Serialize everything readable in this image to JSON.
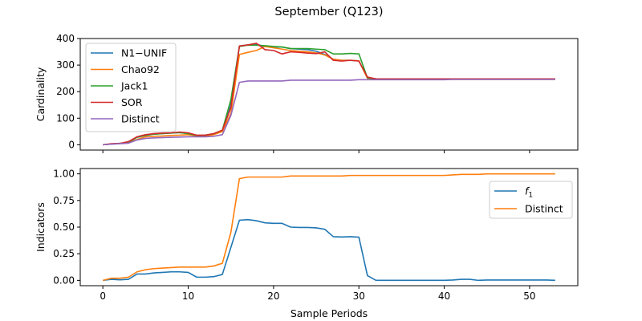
{
  "figure_title": "September (Q123)",
  "chart_data": [
    {
      "type": "line",
      "title": "",
      "xlabel": "",
      "ylabel": "Cardinality",
      "xlim": [
        -2.65,
        55.65
      ],
      "ylim": [
        -20,
        400
      ],
      "xticks": [
        0,
        10,
        20,
        30,
        40,
        50
      ],
      "yticks": [
        0,
        100,
        200,
        300,
        400
      ],
      "ytick_labels": [
        "0",
        "100",
        "200",
        "300",
        "400"
      ],
      "show_xtick_labels": false,
      "grid": false,
      "legend_position": "upper left",
      "series": [
        {
          "name": "N1−UNIF",
          "color": "#1f77b4",
          "x": [
            0,
            1,
            2,
            3,
            4,
            5,
            6,
            7,
            8,
            9,
            10,
            11,
            12,
            13,
            14,
            15,
            16,
            17,
            18,
            19,
            20,
            21,
            22,
            23,
            24,
            25,
            26,
            27,
            28,
            29,
            30,
            31,
            32,
            33,
            34,
            35,
            36,
            37,
            38,
            39,
            40,
            41,
            42,
            43,
            44,
            45,
            46,
            47,
            48,
            49,
            50,
            51,
            52,
            53
          ],
          "values": [
            0,
            3,
            5,
            10,
            28,
            35,
            40,
            42,
            44,
            46,
            42,
            35,
            35,
            40,
            50,
            150,
            372,
            376,
            378,
            370,
            368,
            368,
            362,
            360,
            358,
            352,
            340,
            322,
            318,
            318,
            316,
            252,
            248,
            248,
            248,
            248,
            248,
            248,
            248,
            248,
            248,
            248,
            248,
            248,
            248,
            248,
            248,
            248,
            248,
            248,
            248,
            248,
            248,
            248
          ]
        },
        {
          "name": "Chao92",
          "color": "#ff7f0e",
          "x": [
            0,
            1,
            2,
            3,
            4,
            5,
            6,
            7,
            8,
            9,
            10,
            11,
            12,
            13,
            14,
            15,
            16,
            17,
            18,
            19,
            20,
            21,
            22,
            23,
            24,
            25,
            26,
            27,
            28,
            29,
            30,
            31,
            32,
            33,
            34,
            35,
            36,
            37,
            38,
            39,
            40,
            41,
            42,
            43,
            44,
            45,
            46,
            47,
            48,
            49,
            50,
            51,
            52,
            53
          ],
          "values": [
            0,
            3,
            5,
            8,
            20,
            30,
            32,
            33,
            35,
            36,
            38,
            33,
            33,
            38,
            50,
            118,
            340,
            348,
            355,
            370,
            365,
            360,
            355,
            352,
            350,
            346,
            338,
            322,
            318,
            318,
            316,
            250,
            246,
            246,
            246,
            246,
            246,
            246,
            246,
            246,
            246,
            246,
            246,
            246,
            246,
            246,
            246,
            246,
            246,
            246,
            246,
            246,
            246,
            246
          ]
        },
        {
          "name": "Jack1",
          "color": "#2ca02c",
          "x": [
            0,
            1,
            2,
            3,
            4,
            5,
            6,
            7,
            8,
            9,
            10,
            11,
            12,
            13,
            14,
            15,
            16,
            17,
            18,
            19,
            20,
            21,
            22,
            23,
            24,
            25,
            26,
            27,
            28,
            29,
            30,
            31,
            32,
            33,
            34,
            35,
            36,
            37,
            38,
            39,
            40,
            41,
            42,
            43,
            44,
            45,
            46,
            47,
            48,
            49,
            50,
            51,
            52,
            53
          ],
          "values": [
            0,
            3,
            5,
            10,
            28,
            36,
            40,
            42,
            44,
            46,
            42,
            35,
            36,
            42,
            55,
            170,
            370,
            375,
            375,
            373,
            370,
            368,
            362,
            362,
            362,
            360,
            358,
            342,
            342,
            344,
            342,
            252,
            248,
            248,
            248,
            248,
            248,
            248,
            248,
            248,
            248,
            248,
            248,
            248,
            248,
            248,
            248,
            248,
            248,
            248,
            248,
            248,
            248,
            248
          ]
        },
        {
          "name": "SOR",
          "color": "#d62728",
          "x": [
            0,
            1,
            2,
            3,
            4,
            5,
            6,
            7,
            8,
            9,
            10,
            11,
            12,
            13,
            14,
            15,
            16,
            17,
            18,
            19,
            20,
            21,
            22,
            23,
            24,
            25,
            26,
            27,
            28,
            29,
            30,
            31,
            32,
            33,
            34,
            35,
            36,
            37,
            38,
            39,
            40,
            41,
            42,
            43,
            44,
            45,
            46,
            47,
            48,
            49,
            50,
            51,
            52,
            53
          ],
          "values": [
            0,
            4,
            5,
            12,
            30,
            38,
            42,
            44,
            45,
            48,
            45,
            36,
            36,
            42,
            55,
            140,
            372,
            376,
            382,
            358,
            355,
            342,
            350,
            348,
            345,
            343,
            350,
            318,
            315,
            318,
            315,
            255,
            248,
            248,
            248,
            248,
            248,
            248,
            248,
            248,
            248,
            248,
            248,
            248,
            248,
            248,
            248,
            248,
            248,
            248,
            248,
            248,
            248,
            248
          ]
        },
        {
          "name": "Distinct",
          "color": "#9467bd",
          "x": [
            0,
            1,
            2,
            3,
            4,
            5,
            6,
            7,
            8,
            9,
            10,
            11,
            12,
            13,
            14,
            15,
            16,
            17,
            18,
            19,
            20,
            21,
            22,
            23,
            24,
            25,
            26,
            27,
            28,
            29,
            30,
            31,
            32,
            33,
            34,
            35,
            36,
            37,
            38,
            39,
            40,
            41,
            42,
            43,
            44,
            45,
            46,
            47,
            48,
            49,
            50,
            51,
            52,
            53
          ],
          "values": [
            0,
            2,
            4,
            6,
            18,
            24,
            26,
            27,
            28,
            29,
            30,
            30,
            30,
            32,
            38,
            110,
            235,
            240,
            240,
            240,
            240,
            240,
            243,
            243,
            243,
            243,
            243,
            243,
            243,
            243,
            245,
            245,
            245,
            245,
            245,
            245,
            245,
            245,
            245,
            245,
            245,
            246,
            246,
            246,
            246,
            246,
            246,
            246,
            246,
            246,
            246,
            246,
            246,
            246
          ]
        }
      ]
    },
    {
      "type": "line",
      "title": "",
      "xlabel": "Sample Periods",
      "ylabel": "Indicators",
      "xlim": [
        -2.65,
        55.65
      ],
      "ylim": [
        -0.05,
        1.05
      ],
      "xticks": [
        0,
        10,
        20,
        30,
        40,
        50
      ],
      "xtick_labels": [
        "0",
        "10",
        "20",
        "30",
        "40",
        "50"
      ],
      "yticks": [
        0,
        0.25,
        0.5,
        0.75,
        1.0
      ],
      "ytick_labels": [
        "0.00",
        "0.25",
        "0.50",
        "0.75",
        "1.00"
      ],
      "show_xtick_labels": true,
      "grid": false,
      "legend_position": "upper right",
      "series": [
        {
          "name": "f1",
          "legend_main": "f",
          "legend_sub": "1",
          "color": "#1f77b4",
          "x": [
            0,
            1,
            2,
            3,
            4,
            5,
            6,
            7,
            8,
            9,
            10,
            11,
            12,
            13,
            14,
            15,
            16,
            17,
            18,
            19,
            20,
            21,
            22,
            23,
            24,
            25,
            26,
            27,
            28,
            29,
            30,
            31,
            32,
            33,
            34,
            35,
            36,
            37,
            38,
            39,
            40,
            41,
            42,
            43,
            44,
            45,
            46,
            47,
            48,
            49,
            50,
            51,
            52,
            53
          ],
          "values": [
            0,
            0.01,
            0.005,
            0.01,
            0.06,
            0.06,
            0.07,
            0.075,
            0.08,
            0.08,
            0.075,
            0.03,
            0.03,
            0.035,
            0.055,
            0.31,
            0.565,
            0.57,
            0.56,
            0.54,
            0.535,
            0.535,
            0.5,
            0.497,
            0.497,
            0.493,
            0.48,
            0.41,
            0.407,
            0.41,
            0.405,
            0.045,
            0,
            0,
            0,
            0,
            0,
            0,
            0,
            0,
            0,
            0.003,
            0.01,
            0.01,
            0,
            0.003,
            0.003,
            0.003,
            0.003,
            0.003,
            0.003,
            0.003,
            0.003,
            0
          ]
        },
        {
          "name": "Distinct",
          "color": "#ff7f0e",
          "x": [
            0,
            1,
            2,
            3,
            4,
            5,
            6,
            7,
            8,
            9,
            10,
            11,
            12,
            13,
            14,
            15,
            16,
            17,
            18,
            19,
            20,
            21,
            22,
            23,
            24,
            25,
            26,
            27,
            28,
            29,
            30,
            31,
            32,
            33,
            34,
            35,
            36,
            37,
            38,
            39,
            40,
            41,
            42,
            43,
            44,
            45,
            46,
            47,
            48,
            49,
            50,
            51,
            52,
            53
          ],
          "values": [
            0,
            0.02,
            0.02,
            0.03,
            0.08,
            0.1,
            0.11,
            0.115,
            0.12,
            0.125,
            0.125,
            0.125,
            0.125,
            0.135,
            0.16,
            0.45,
            0.955,
            0.97,
            0.97,
            0.97,
            0.97,
            0.97,
            0.98,
            0.98,
            0.98,
            0.98,
            0.98,
            0.98,
            0.98,
            0.985,
            0.985,
            0.985,
            0.985,
            0.985,
            0.985,
            0.985,
            0.985,
            0.985,
            0.985,
            0.985,
            0.985,
            0.99,
            0.995,
            0.995,
            0.995,
            1.0,
            1.0,
            1.0,
            1.0,
            1.0,
            1.0,
            1.0,
            1.0,
            1.0
          ]
        }
      ]
    }
  ]
}
